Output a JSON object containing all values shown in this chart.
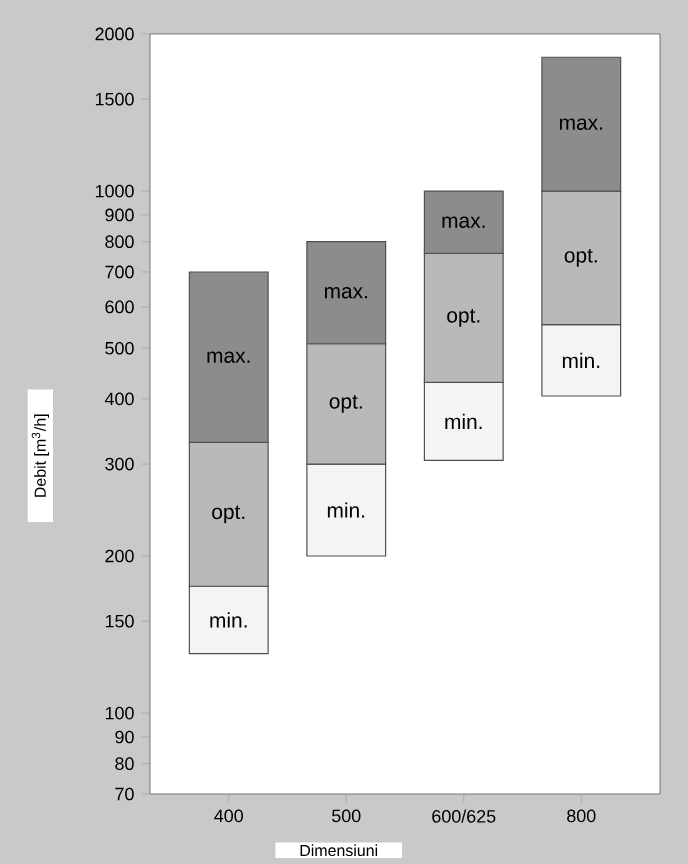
{
  "chart_data": {
    "type": "bar",
    "log": true,
    "xlabel": "Dimensiuni",
    "ylabel": "Debit  [m$^{3}$/h]",
    "categories": [
      "400",
      "500",
      "600/625",
      "800"
    ],
    "series": [
      {
        "name": "min.",
        "color": "#f4f4f4",
        "base": [
          130,
          200,
          305,
          405
        ],
        "values": [
          45,
          100,
          125,
          150
        ]
      },
      {
        "name": "opt.",
        "color": "#b9b9b9",
        "base": [
          175,
          300,
          430,
          555
        ],
        "values": [
          155,
          210,
          330,
          445
        ]
      },
      {
        "name": "max.",
        "color": "#8c8c8c",
        "base": [
          330,
          510,
          760,
          1000
        ],
        "values": [
          370,
          290,
          240,
          805
        ]
      }
    ],
    "ylim": [
      70,
      2000
    ],
    "yticks": [
      70,
      80,
      90,
      100,
      150,
      200,
      300,
      400,
      500,
      600,
      700,
      800,
      900,
      1000,
      1500,
      2000
    ]
  }
}
